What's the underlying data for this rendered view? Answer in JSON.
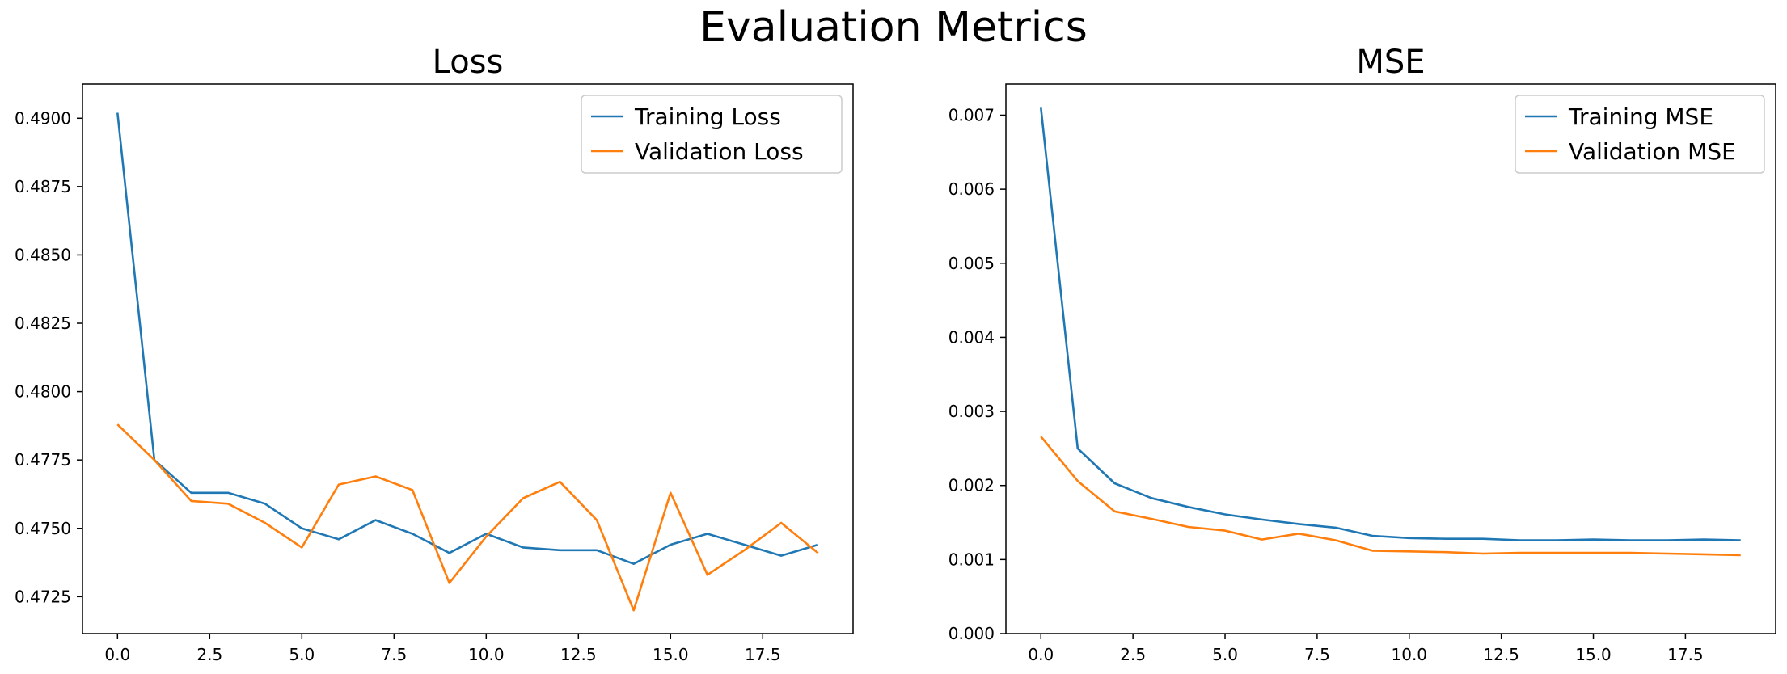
{
  "figure": {
    "title": "Evaluation Metrics"
  },
  "colors": {
    "training": "#1f77b4",
    "validation": "#ff7f0e"
  },
  "chart_data": [
    {
      "type": "line",
      "title": "Loss",
      "xlabel": "",
      "ylabel": "",
      "x": [
        0,
        1,
        2,
        3,
        4,
        5,
        6,
        7,
        8,
        9,
        10,
        11,
        12,
        13,
        14,
        15,
        16,
        17,
        18,
        19
      ],
      "xlim": [
        -0.95,
        19.95
      ],
      "ylim": [
        0.47115,
        0.49125
      ],
      "xticks": [
        0.0,
        2.5,
        5.0,
        7.5,
        10.0,
        12.5,
        15.0,
        17.5
      ],
      "xtick_labels": [
        "0.0",
        "2.5",
        "5.0",
        "7.5",
        "10.0",
        "12.5",
        "15.0",
        "17.5"
      ],
      "yticks": [
        0.4725,
        0.475,
        0.4775,
        0.48,
        0.4825,
        0.485,
        0.4875,
        0.49
      ],
      "ytick_labels": [
        "0.4725",
        "0.4750",
        "0.4775",
        "0.4800",
        "0.4825",
        "0.4850",
        "0.4875",
        "0.4900"
      ],
      "legend": "top-right",
      "series": [
        {
          "name": "Training Loss",
          "color": "#1f77b4",
          "values": [
            0.4902,
            0.4775,
            0.4763,
            0.4763,
            0.4759,
            0.475,
            0.4746,
            0.4753,
            0.4748,
            0.4741,
            0.4748,
            0.4743,
            0.4742,
            0.4742,
            0.4737,
            0.4744,
            0.4748,
            0.4744,
            0.474,
            0.4744
          ]
        },
        {
          "name": "Validation Loss",
          "color": "#ff7f0e",
          "values": [
            0.4788,
            0.4775,
            0.476,
            0.4759,
            0.4752,
            0.4743,
            0.4766,
            0.4769,
            0.4764,
            0.473,
            0.4747,
            0.4761,
            0.4767,
            0.4753,
            0.472,
            0.4763,
            0.4733,
            0.4742,
            0.4752,
            0.4741
          ]
        }
      ]
    },
    {
      "type": "line",
      "title": "MSE",
      "xlabel": "",
      "ylabel": "",
      "x": [
        0,
        1,
        2,
        3,
        4,
        5,
        6,
        7,
        8,
        9,
        10,
        11,
        12,
        13,
        14,
        15,
        16,
        17,
        18,
        19
      ],
      "xlim": [
        -0.95,
        19.95
      ],
      "ylim": [
        0.0,
        0.00742
      ],
      "xticks": [
        0.0,
        2.5,
        5.0,
        7.5,
        10.0,
        12.5,
        15.0,
        17.5
      ],
      "xtick_labels": [
        "0.0",
        "2.5",
        "5.0",
        "7.5",
        "10.0",
        "12.5",
        "15.0",
        "17.5"
      ],
      "yticks": [
        0.0,
        0.001,
        0.002,
        0.003,
        0.004,
        0.005,
        0.006,
        0.007
      ],
      "ytick_labels": [
        "0.000",
        "0.001",
        "0.002",
        "0.003",
        "0.004",
        "0.005",
        "0.006",
        "0.007"
      ],
      "legend": "top-right",
      "series": [
        {
          "name": "Training MSE",
          "color": "#1f77b4",
          "values": [
            0.0071,
            0.0025,
            0.00203,
            0.00183,
            0.00171,
            0.00161,
            0.00154,
            0.00148,
            0.00143,
            0.00132,
            0.00129,
            0.00128,
            0.00128,
            0.00126,
            0.00126,
            0.00127,
            0.00126,
            0.00126,
            0.00127,
            0.00126
          ]
        },
        {
          "name": "Validation MSE",
          "color": "#ff7f0e",
          "values": [
            0.00266,
            0.00206,
            0.00165,
            0.00155,
            0.00144,
            0.00139,
            0.00127,
            0.00135,
            0.00126,
            0.00112,
            0.00111,
            0.0011,
            0.00108,
            0.00109,
            0.00109,
            0.00109,
            0.00109,
            0.00108,
            0.00107,
            0.00106
          ]
        }
      ]
    }
  ]
}
